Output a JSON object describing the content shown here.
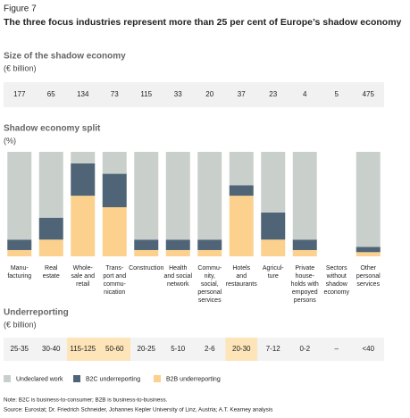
{
  "figure": "Figure 7",
  "title": "The three focus industries represent more than 25 per cent of Europe’s shadow economy",
  "size": {
    "title": "Size of the shadow economy",
    "unit": "(€ billion)",
    "values": [
      177,
      65,
      134,
      73,
      115,
      33,
      20,
      37,
      23,
      4,
      5,
      475
    ],
    "color": "#f1f1f1"
  },
  "chart_data": {
    "type": "stacked_bar",
    "title": "Shadow economy split",
    "unit": "(%)",
    "categories": [
      [
        "Manu-",
        "facturing"
      ],
      [
        "Real",
        "estate"
      ],
      [
        "Whole-",
        "sale and",
        "retail"
      ],
      [
        "Trans-",
        "port and",
        "commu-",
        "nication"
      ],
      [
        "Construction"
      ],
      [
        "Health",
        "and social",
        "network"
      ],
      [
        "Commu-",
        "nity,",
        "social,",
        "personal",
        "services"
      ],
      [
        "Hotels",
        "and",
        "restaurants"
      ],
      [
        "Agricul-",
        "ture"
      ],
      [
        "Private",
        "house-",
        "holds with",
        "empoyed",
        "persons"
      ],
      [
        "Sectors",
        "without",
        "shadow",
        "economy"
      ],
      [
        "Other",
        "personal",
        "services"
      ]
    ],
    "series": [
      {
        "name": "Undeclared work",
        "color": "#c9d0cc",
        "values": [
          84,
          63,
          11,
          21,
          84,
          84,
          84,
          32,
          58,
          84,
          0,
          91
        ]
      },
      {
        "name": "B2C underreporting",
        "color": "#4f6577",
        "values": [
          10,
          21,
          31,
          32,
          10,
          10,
          10,
          10,
          26,
          10,
          0,
          5
        ]
      },
      {
        "name": "B2B underreporting",
        "color": "#fbd18d",
        "values": [
          6,
          16,
          58,
          47,
          6,
          6,
          6,
          58,
          16,
          6,
          0,
          4
        ]
      }
    ],
    "ylim": [
      0,
      100
    ]
  },
  "underreporting": {
    "title": "Underreporting",
    "unit": "(€ billion)",
    "labels": [
      "25-35",
      "30-40",
      "115-125",
      "50-60",
      "20-25",
      "5-10",
      "2-6",
      "20-30",
      "7-12",
      "0-2",
      "–",
      "<40"
    ],
    "highlighted": [
      false,
      false,
      true,
      true,
      false,
      false,
      false,
      true,
      false,
      false,
      false,
      false
    ],
    "color": "#f3f3f3",
    "highlight_color": "#fde4b9"
  },
  "note": "Note: B2C is business-to-consumer; B2B is business-to-business.",
  "source": "Source: Eurostat; Dr. Friedrich Schneider, Johannes Kepler University of Linz, Austria; A.T. Kearney analysis"
}
